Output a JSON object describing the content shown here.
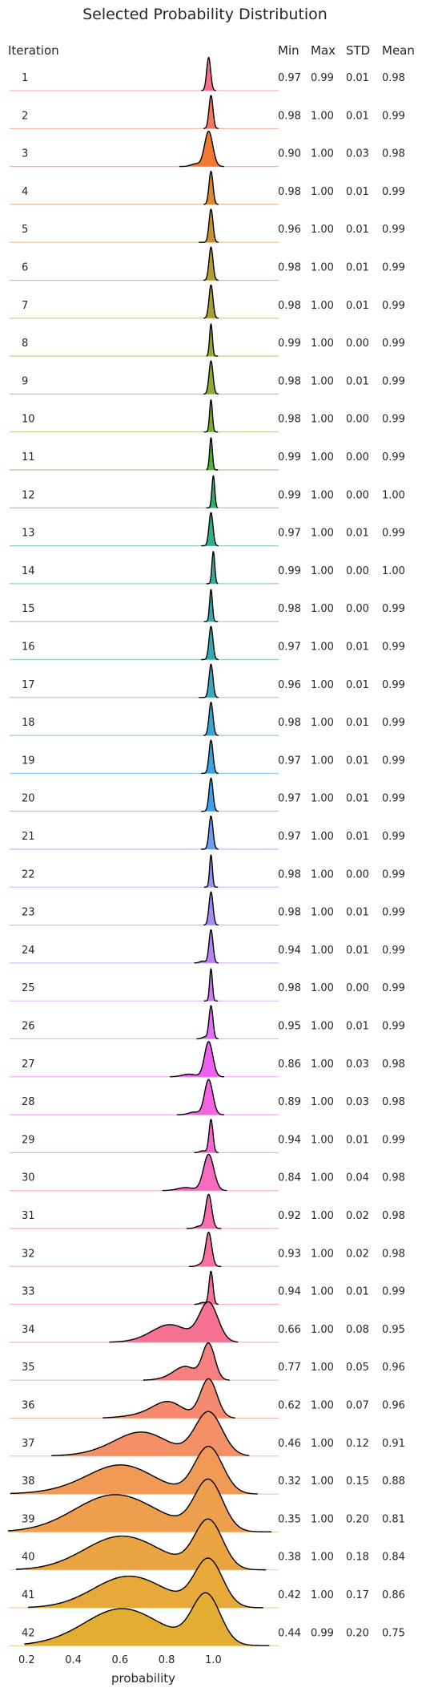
{
  "chart_data": {
    "type": "ridgeline",
    "title": "Selected Probability Distribution",
    "xlabel": "probability",
    "row_header": "Iteration",
    "stat_headers": [
      "Min",
      "Max",
      "STD",
      "Mean"
    ],
    "xlim": [
      0.12,
      1.28
    ],
    "xticks": [
      0.2,
      0.4,
      0.6,
      0.8,
      1.0
    ],
    "xtick_labels": [
      "0.2",
      "0.4",
      "0.6",
      "0.8",
      "1.0"
    ],
    "grid": false,
    "legend": "none",
    "colors": [
      "#f77189",
      "#f6765e",
      "#f37932",
      "#dc8932",
      "#c79332",
      "#b79b32",
      "#a99f32",
      "#9ba532",
      "#8bab32",
      "#75b032",
      "#50b132",
      "#33b168",
      "#34ae8a",
      "#34ad9b",
      "#35aca8",
      "#36aab4",
      "#37a9c0",
      "#38a7ce",
      "#3aa5dd",
      "#3ca2f0",
      "#6e9bf4",
      "#8f94f4",
      "#a48cf4",
      "#b985f4",
      "#c97cf3",
      "#db73f3",
      "#f05ef2",
      "#f464e2",
      "#f566d1",
      "#f66ac0",
      "#f66db2",
      "#f76fa3",
      "#f7719a",
      "#f77192",
      "#f67f7f",
      "#f58a6f",
      "#f39065",
      "#f19a55",
      "#ee9f4d",
      "#eba442",
      "#e7a93a",
      "#e3ad33"
    ],
    "series": [
      {
        "iteration": 1,
        "min": "0.97",
        "max": "0.99",
        "std": "0.01",
        "mean": "0.98"
      },
      {
        "iteration": 2,
        "min": "0.98",
        "max": "1.00",
        "std": "0.01",
        "mean": "0.99"
      },
      {
        "iteration": 3,
        "min": "0.90",
        "max": "1.00",
        "std": "0.03",
        "mean": "0.98"
      },
      {
        "iteration": 4,
        "min": "0.98",
        "max": "1.00",
        "std": "0.01",
        "mean": "0.99"
      },
      {
        "iteration": 5,
        "min": "0.96",
        "max": "1.00",
        "std": "0.01",
        "mean": "0.99"
      },
      {
        "iteration": 6,
        "min": "0.98",
        "max": "1.00",
        "std": "0.01",
        "mean": "0.99"
      },
      {
        "iteration": 7,
        "min": "0.98",
        "max": "1.00",
        "std": "0.01",
        "mean": "0.99"
      },
      {
        "iteration": 8,
        "min": "0.99",
        "max": "1.00",
        "std": "0.00",
        "mean": "0.99"
      },
      {
        "iteration": 9,
        "min": "0.98",
        "max": "1.00",
        "std": "0.01",
        "mean": "0.99"
      },
      {
        "iteration": 10,
        "min": "0.98",
        "max": "1.00",
        "std": "0.00",
        "mean": "0.99"
      },
      {
        "iteration": 11,
        "min": "0.99",
        "max": "1.00",
        "std": "0.00",
        "mean": "0.99"
      },
      {
        "iteration": 12,
        "min": "0.99",
        "max": "1.00",
        "std": "0.00",
        "mean": "1.00"
      },
      {
        "iteration": 13,
        "min": "0.97",
        "max": "1.00",
        "std": "0.01",
        "mean": "0.99"
      },
      {
        "iteration": 14,
        "min": "0.99",
        "max": "1.00",
        "std": "0.00",
        "mean": "1.00"
      },
      {
        "iteration": 15,
        "min": "0.98",
        "max": "1.00",
        "std": "0.00",
        "mean": "0.99"
      },
      {
        "iteration": 16,
        "min": "0.97",
        "max": "1.00",
        "std": "0.01",
        "mean": "0.99"
      },
      {
        "iteration": 17,
        "min": "0.96",
        "max": "1.00",
        "std": "0.01",
        "mean": "0.99"
      },
      {
        "iteration": 18,
        "min": "0.98",
        "max": "1.00",
        "std": "0.01",
        "mean": "0.99"
      },
      {
        "iteration": 19,
        "min": "0.97",
        "max": "1.00",
        "std": "0.01",
        "mean": "0.99"
      },
      {
        "iteration": 20,
        "min": "0.97",
        "max": "1.00",
        "std": "0.01",
        "mean": "0.99"
      },
      {
        "iteration": 21,
        "min": "0.97",
        "max": "1.00",
        "std": "0.01",
        "mean": "0.99"
      },
      {
        "iteration": 22,
        "min": "0.98",
        "max": "1.00",
        "std": "0.00",
        "mean": "0.99"
      },
      {
        "iteration": 23,
        "min": "0.98",
        "max": "1.00",
        "std": "0.01",
        "mean": "0.99"
      },
      {
        "iteration": 24,
        "min": "0.94",
        "max": "1.00",
        "std": "0.01",
        "mean": "0.99"
      },
      {
        "iteration": 25,
        "min": "0.98",
        "max": "1.00",
        "std": "0.00",
        "mean": "0.99"
      },
      {
        "iteration": 26,
        "min": "0.95",
        "max": "1.00",
        "std": "0.01",
        "mean": "0.99"
      },
      {
        "iteration": 27,
        "min": "0.86",
        "max": "1.00",
        "std": "0.03",
        "mean": "0.98"
      },
      {
        "iteration": 28,
        "min": "0.89",
        "max": "1.00",
        "std": "0.03",
        "mean": "0.98"
      },
      {
        "iteration": 29,
        "min": "0.94",
        "max": "1.00",
        "std": "0.01",
        "mean": "0.99"
      },
      {
        "iteration": 30,
        "min": "0.84",
        "max": "1.00",
        "std": "0.04",
        "mean": "0.98"
      },
      {
        "iteration": 31,
        "min": "0.92",
        "max": "1.00",
        "std": "0.02",
        "mean": "0.98"
      },
      {
        "iteration": 32,
        "min": "0.93",
        "max": "1.00",
        "std": "0.02",
        "mean": "0.98"
      },
      {
        "iteration": 33,
        "min": "0.94",
        "max": "1.00",
        "std": "0.01",
        "mean": "0.99"
      },
      {
        "iteration": 34,
        "min": "0.66",
        "max": "1.00",
        "std": "0.08",
        "mean": "0.95"
      },
      {
        "iteration": 35,
        "min": "0.77",
        "max": "1.00",
        "std": "0.05",
        "mean": "0.96"
      },
      {
        "iteration": 36,
        "min": "0.62",
        "max": "1.00",
        "std": "0.07",
        "mean": "0.96"
      },
      {
        "iteration": 37,
        "min": "0.46",
        "max": "1.00",
        "std": "0.12",
        "mean": "0.91"
      },
      {
        "iteration": 38,
        "min": "0.32",
        "max": "1.00",
        "std": "0.15",
        "mean": "0.88"
      },
      {
        "iteration": 39,
        "min": "0.35",
        "max": "1.00",
        "std": "0.20",
        "mean": "0.81"
      },
      {
        "iteration": 40,
        "min": "0.38",
        "max": "1.00",
        "std": "0.18",
        "mean": "0.84"
      },
      {
        "iteration": 41,
        "min": "0.42",
        "max": "1.00",
        "std": "0.17",
        "mean": "0.86"
      },
      {
        "iteration": 42,
        "min": "0.44",
        "max": "0.99",
        "std": "0.20",
        "mean": "0.75"
      }
    ]
  }
}
